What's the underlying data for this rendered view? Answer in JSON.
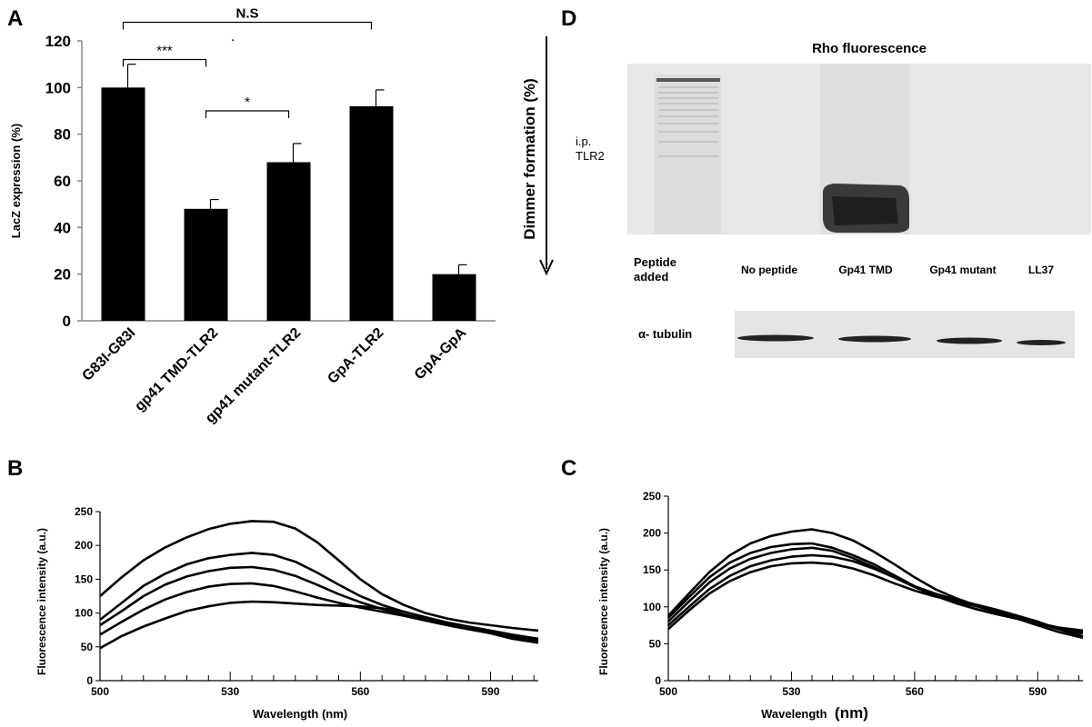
{
  "colors": {
    "ink": "#000000",
    "axis": "#888888",
    "gel_bg": "#e7e7e7",
    "blot_bg": "#e4e4e4",
    "band_dark": "#222222"
  },
  "panels": {
    "a": "A",
    "b": "B",
    "c": "C",
    "d": "D"
  },
  "chart_data": [
    {
      "type": "bar",
      "panel": "A",
      "ylabel": "LacZ expression (%)",
      "xlabel": "",
      "ylim": [
        0,
        120
      ],
      "yticks": [
        0,
        20,
        40,
        60,
        80,
        100,
        120
      ],
      "categories": [
        "G83I-G83I",
        "gp41 TMD-TLR2",
        "gp41 mutant-TLR2",
        "GpA-TLR2",
        "GpA-GpA"
      ],
      "values": [
        100,
        48,
        68,
        92,
        20
      ],
      "errors": [
        10,
        4,
        8,
        7,
        4
      ],
      "significance": [
        {
          "from": 0,
          "to": 3,
          "label": "N.S",
          "level": 128
        },
        {
          "from": 0,
          "to": 1,
          "label": "***",
          "level": 112
        },
        {
          "from": 1,
          "to": 2,
          "label": "*",
          "level": 90
        }
      ],
      "annotation_dot": "."
    },
    {
      "type": "line",
      "panel": "B",
      "xlabel": "Wavelength (nm)",
      "ylabel": "Fluorescence intensity (a.u.)",
      "xlim": [
        500,
        601
      ],
      "ylim": [
        0,
        250
      ],
      "xticks": [
        500,
        530,
        560,
        590
      ],
      "yticks": [
        0,
        50,
        100,
        150,
        200,
        250
      ],
      "x": [
        500,
        505,
        510,
        515,
        520,
        525,
        530,
        535,
        540,
        545,
        550,
        555,
        560,
        565,
        570,
        575,
        580,
        585,
        590,
        595,
        601
      ],
      "series": [
        {
          "values": [
            125,
            153,
            178,
            197,
            212,
            224,
            232,
            236,
            235,
            225,
            205,
            178,
            150,
            128,
            112,
            100,
            92,
            86,
            82,
            78,
            74
          ]
        },
        {
          "values": [
            90,
            115,
            140,
            158,
            172,
            181,
            186,
            189,
            186,
            176,
            160,
            142,
            125,
            112,
            102,
            93,
            86,
            80,
            74,
            68,
            62
          ]
        },
        {
          "values": [
            82,
            103,
            125,
            142,
            154,
            162,
            167,
            168,
            164,
            155,
            142,
            128,
            116,
            106,
            98,
            90,
            84,
            78,
            72,
            66,
            60
          ]
        },
        {
          "values": [
            68,
            87,
            105,
            120,
            131,
            139,
            143,
            144,
            140,
            132,
            123,
            115,
            108,
            102,
            96,
            89,
            82,
            76,
            70,
            64,
            58
          ]
        },
        {
          "values": [
            48,
            66,
            80,
            92,
            103,
            110,
            115,
            117,
            116,
            114,
            112,
            111,
            110,
            107,
            102,
            94,
            86,
            78,
            70,
            62,
            56
          ]
        }
      ]
    },
    {
      "type": "line",
      "panel": "C",
      "xlabel": "Wavelength",
      "xlabel_unit": "(nm)",
      "ylabel": "Fluorescence intensity (a.u.)",
      "xlim": [
        500,
        601
      ],
      "ylim": [
        0,
        250
      ],
      "xticks": [
        500,
        530,
        560,
        590
      ],
      "yticks": [
        0,
        50,
        100,
        150,
        200,
        250
      ],
      "x": [
        500,
        505,
        510,
        515,
        520,
        525,
        530,
        535,
        540,
        545,
        550,
        555,
        560,
        565,
        570,
        575,
        580,
        585,
        590,
        595,
        601
      ],
      "series": [
        {
          "values": [
            88,
            118,
            147,
            170,
            186,
            196,
            202,
            205,
            200,
            190,
            175,
            158,
            140,
            124,
            112,
            102,
            94,
            86,
            78,
            72,
            68
          ]
        },
        {
          "values": [
            85,
            113,
            140,
            160,
            173,
            181,
            185,
            186,
            180,
            170,
            158,
            143,
            128,
            116,
            106,
            97,
            90,
            84,
            78,
            72,
            66
          ]
        },
        {
          "values": [
            80,
            107,
            133,
            152,
            165,
            173,
            178,
            180,
            176,
            166,
            154,
            140,
            127,
            115,
            105,
            97,
            90,
            84,
            78,
            70,
            64
          ]
        },
        {
          "values": [
            75,
            100,
            124,
            142,
            155,
            163,
            168,
            170,
            168,
            162,
            152,
            140,
            128,
            118,
            110,
            103,
            96,
            88,
            80,
            70,
            60
          ]
        },
        {
          "values": [
            70,
            95,
            118,
            135,
            147,
            155,
            159,
            160,
            158,
            152,
            143,
            132,
            122,
            114,
            108,
            101,
            93,
            84,
            75,
            66,
            58
          ]
        }
      ]
    }
  ],
  "gel": {
    "title": "Rho fluorescence",
    "arrow_label": "Dimmer formation  (%)",
    "row_label_line1": "i.p.",
    "row_label_line2": "TLR2",
    "peptide_label_line1": "Peptide",
    "peptide_label_line2": "added",
    "lanes": [
      "No peptide",
      "Gp41 TMD",
      "Gp41 mutant",
      "LL37"
    ],
    "tubulin_label": "α- tubulin"
  }
}
